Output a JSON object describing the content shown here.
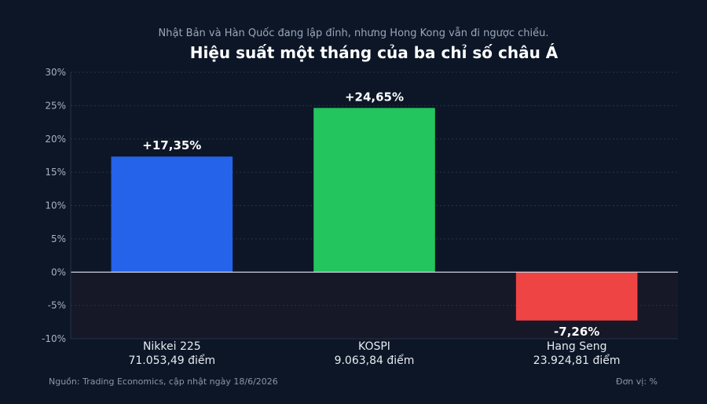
{
  "chart_data": {
    "type": "bar",
    "subtitle": "Nhật Bản và Hàn Quốc đang lập đỉnh, nhưng Hong Kong vẫn đi ngược chiều.",
    "title": "Hiệu suất một tháng của ba chỉ số châu Á",
    "categories": [
      "Nikkei 225",
      "KOSPI",
      "Hang Seng"
    ],
    "category_sublabels": [
      "71.053,49 điểm",
      "9.063,84 điểm",
      "23.924,81 điểm"
    ],
    "values": [
      17.35,
      24.65,
      -7.26
    ],
    "value_labels": [
      "+17,35%",
      "+24,65%",
      "-7,26%"
    ],
    "bar_colors": [
      "#2563eb",
      "#22c55e",
      "#ef4444"
    ],
    "ylim": [
      -10,
      30
    ],
    "yticks": [
      30,
      25,
      20,
      15,
      10,
      5,
      0,
      -5,
      -10
    ],
    "ytick_labels": [
      "30%",
      "25%",
      "20%",
      "15%",
      "10%",
      "5%",
      "0%",
      "-5%",
      "-10%"
    ],
    "grid": true,
    "source": "Nguồn: Trading Economics, cập nhật ngày 18/6/2026",
    "unit": "Đơn vị: %"
  },
  "colors": {
    "background": "#0c1626",
    "negative_zone": "#161827",
    "grid": "#25344a",
    "zero_line": "#cfd6e0"
  }
}
